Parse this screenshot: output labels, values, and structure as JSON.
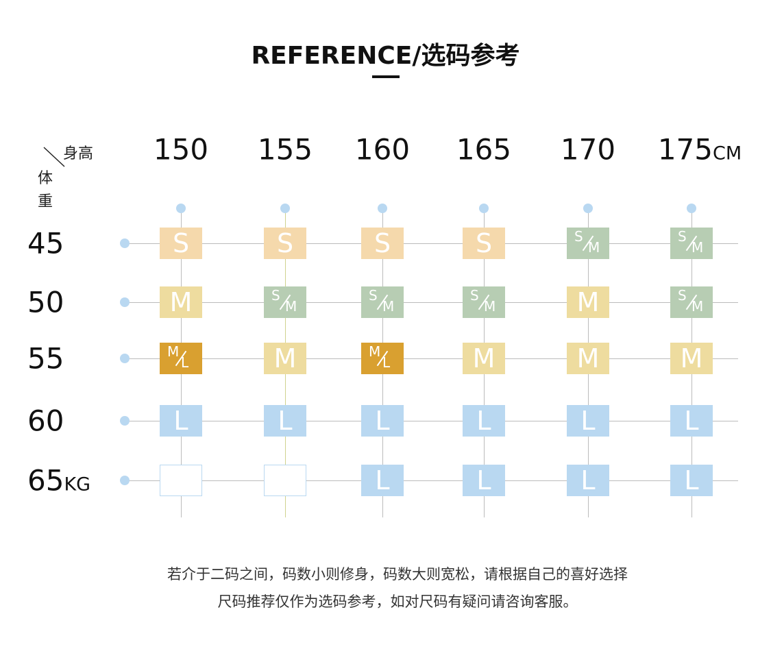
{
  "header": {
    "title": "REFERENCE/选码参考"
  },
  "corner": {
    "height": "身高",
    "weight": [
      "体",
      "重"
    ]
  },
  "heights": {
    "labels": [
      "150",
      "155",
      "160",
      "165",
      "170",
      "175"
    ],
    "unit": "CM"
  },
  "weights": {
    "labels": [
      "45",
      "50",
      "55",
      "60",
      "65"
    ],
    "unit": "KG"
  },
  "grid": {
    "rows": [
      [
        "S",
        "S",
        "S",
        "S",
        {
          "over": "S",
          "under": "M"
        },
        {
          "over": "S",
          "under": "M"
        }
      ],
      [
        "M",
        {
          "over": "S",
          "under": "M"
        },
        {
          "over": "S",
          "under": "M"
        },
        {
          "over": "S",
          "under": "M"
        },
        "M",
        {
          "over": "S",
          "under": "M"
        }
      ],
      [
        {
          "over": "M",
          "under": "L"
        },
        "M",
        {
          "over": "M",
          "under": "L"
        },
        "M",
        "M",
        "M"
      ],
      [
        "L",
        "L",
        "L",
        "L",
        "L",
        "L"
      ],
      [
        null,
        null,
        "L",
        "L",
        "L",
        "L"
      ]
    ]
  },
  "note": [
    "若介于二码之间，码数小则修身，码数大则宽松，请根据自己的喜好选择",
    "尺码推荐仅作为选码参考，如对尺码有疑问请咨询客服。"
  ]
}
